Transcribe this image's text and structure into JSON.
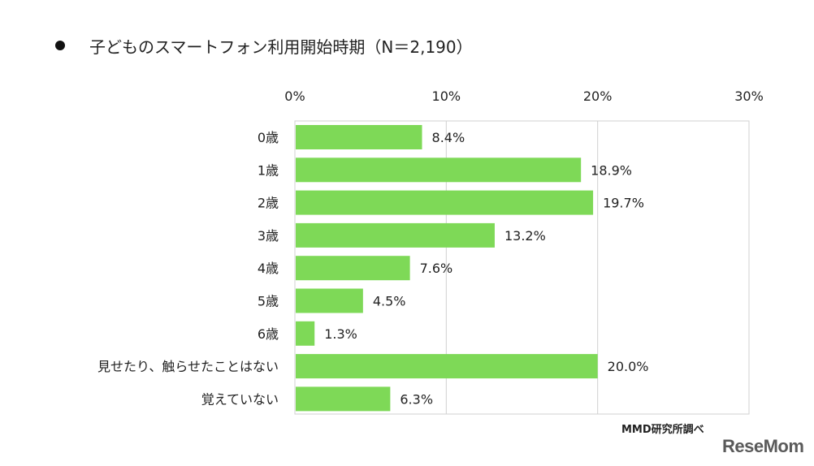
{
  "title": "子どものスマートフォン利用開始時期（N＝2,190）",
  "source": "MMD研究所調べ",
  "logo": "ReseMom",
  "bar_color": "#7ed957",
  "chart_data": {
    "type": "bar",
    "orientation": "horizontal",
    "title": "子どものスマートフォン利用開始時期（N＝2,190）",
    "categories": [
      "0歳",
      "1歳",
      "2歳",
      "3歳",
      "4歳",
      "5歳",
      "6歳",
      "見せたり、触らせたことはない",
      "覚えていない"
    ],
    "values": [
      8.4,
      18.9,
      19.7,
      13.2,
      7.6,
      4.5,
      1.3,
      20.0,
      6.3
    ],
    "value_labels": [
      "8.4%",
      "18.9%",
      "19.7%",
      "13.2%",
      "7.6%",
      "4.5%",
      "1.3%",
      "20.0%",
      "6.3%"
    ],
    "xlim": [
      0,
      30
    ],
    "x_ticks": [
      "0%",
      "10%",
      "20%",
      "30%"
    ],
    "x_tick_values": [
      0,
      10,
      20,
      30
    ],
    "x_axis_position": "top",
    "grid": true,
    "legend": false
  }
}
